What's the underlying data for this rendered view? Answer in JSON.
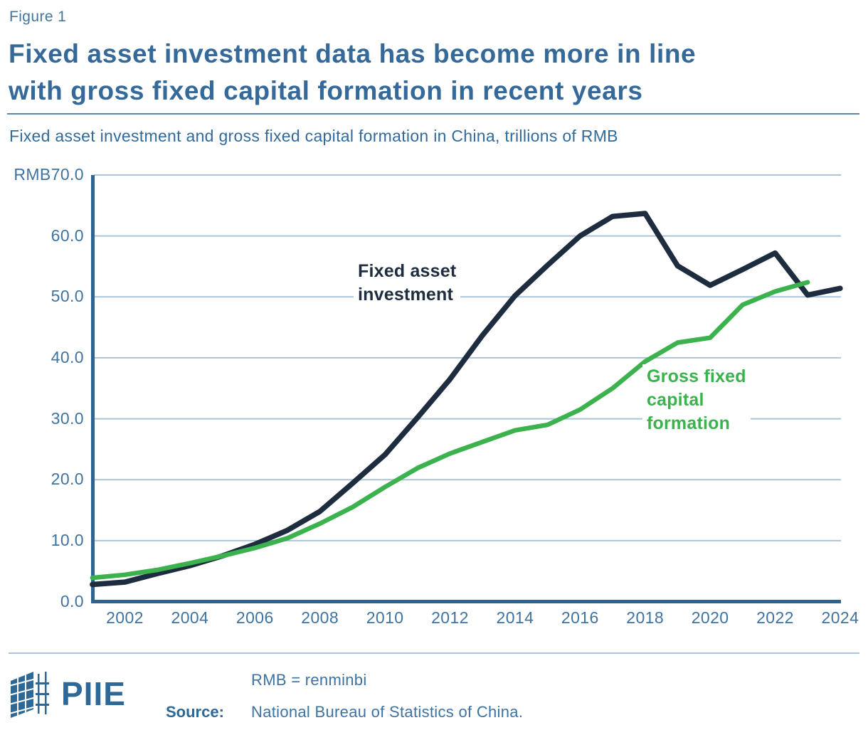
{
  "header": {
    "figure_label": "Figure 1",
    "title": "Fixed asset investment data has become more in line\nwith gross fixed capital formation in recent years",
    "subtitle": "Fixed asset investment and gross fixed capital formation in China, trillions of RMB"
  },
  "chart_data": {
    "type": "line",
    "title": "Fixed asset investment and gross fixed capital formation in China, trillions of RMB",
    "xlabel": "",
    "ylabel": "trillions of RMB",
    "x": [
      2001,
      2002,
      2003,
      2004,
      2005,
      2006,
      2007,
      2008,
      2009,
      2010,
      2011,
      2012,
      2013,
      2014,
      2015,
      2016,
      2017,
      2018,
      2019,
      2020,
      2021,
      2022,
      2023,
      2024
    ],
    "series": [
      {
        "name": "Fixed asset investment",
        "color": "#1d2c3e",
        "values": [
          2.8,
          3.2,
          4.6,
          5.9,
          7.5,
          9.4,
          11.7,
          14.8,
          19.4,
          24.1,
          30.2,
          36.5,
          43.7,
          50.2,
          55.2,
          60.0,
          63.2,
          63.7,
          55.1,
          51.9,
          54.5,
          57.2,
          50.3,
          51.4
        ]
      },
      {
        "name": "Gross fixed capital formation",
        "color": "#3bb24d",
        "values": [
          3.9,
          4.4,
          5.2,
          6.3,
          7.5,
          8.8,
          10.4,
          12.8,
          15.5,
          18.8,
          21.9,
          24.3,
          26.2,
          28.1,
          29.0,
          31.5,
          35.0,
          39.4,
          42.5,
          43.3,
          48.7,
          50.9,
          52.4,
          null
        ]
      }
    ],
    "y_axis": {
      "range": [
        0,
        70
      ],
      "tick_values": [
        70,
        60,
        50,
        40,
        30,
        20,
        10,
        0
      ],
      "tick_labels": [
        "RMB70.0",
        "60.0",
        "50.0",
        "40.0",
        "30.0",
        "20.0",
        "10.0",
        "0.0"
      ]
    },
    "x_axis": {
      "tick_values": [
        2002,
        2004,
        2006,
        2008,
        2010,
        2012,
        2014,
        2016,
        2018,
        2020,
        2022,
        2024
      ],
      "tick_labels": [
        "2002",
        "2004",
        "2006",
        "2008",
        "2010",
        "2012",
        "2014",
        "2016",
        "2018",
        "2020",
        "2022",
        "2024"
      ]
    },
    "grid": true,
    "legend_position": "inline-labels"
  },
  "annotations": {
    "fai_label": "Fixed asset\ninvestment",
    "gfcf_label": "Gross fixed\ncapital\nformation"
  },
  "footer": {
    "note": "RMB = renminbi",
    "source_label": "Source:",
    "source_text": "National Bureau of Statistics of China.",
    "logo_text": "PIIE"
  },
  "colors": {
    "title_blue": "#35699a",
    "tick_blue": "#3f73a1",
    "axis_blue": "#2f6390",
    "gridline_blue": "#aac4da",
    "fai_line": "#1d2c3e",
    "gfcf_line": "#3bb24d",
    "logo_blue": "#2d6897"
  }
}
